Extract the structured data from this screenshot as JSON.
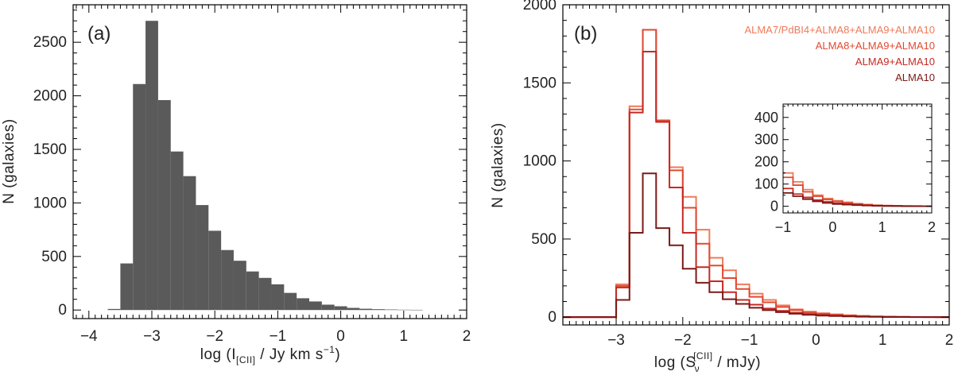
{
  "chart_data": [
    {
      "type": "bar",
      "panel_label": "(a)",
      "xlabel": "log (I",
      "xlabel_sub": "[CII]",
      "xlabel_rest": " / Jy km s",
      "xlabel_sup": "−1",
      "xlabel_close": ")",
      "ylabel": "N (galaxies)",
      "xlim": [
        -4.25,
        2.0
      ],
      "ylim": [
        -80,
        2850
      ],
      "xticks": [
        -4,
        -3,
        -2,
        -1,
        0,
        1,
        2
      ],
      "xtick_labels": [
        "−4",
        "−3",
        "−2",
        "−1",
        "0",
        "1",
        "2"
      ],
      "yticks": [
        0,
        500,
        1000,
        1500,
        2000,
        2500
      ],
      "ytick_labels": [
        "0",
        "500",
        "1000",
        "1500",
        "2000",
        "2500"
      ],
      "bin_width": 0.2,
      "bar_color": "#5a5a5a",
      "bins": [
        {
          "x0": -3.7,
          "value": 10
        },
        {
          "x0": -3.5,
          "value": 435
        },
        {
          "x0": -3.3,
          "value": 2110
        },
        {
          "x0": -3.1,
          "value": 2700
        },
        {
          "x0": -2.9,
          "value": 1960
        },
        {
          "x0": -2.7,
          "value": 1480
        },
        {
          "x0": -2.5,
          "value": 1250
        },
        {
          "x0": -2.3,
          "value": 980
        },
        {
          "x0": -2.1,
          "value": 740
        },
        {
          "x0": -1.9,
          "value": 560
        },
        {
          "x0": -1.7,
          "value": 460
        },
        {
          "x0": -1.5,
          "value": 360
        },
        {
          "x0": -1.3,
          "value": 300
        },
        {
          "x0": -1.1,
          "value": 240
        },
        {
          "x0": -0.9,
          "value": 160
        },
        {
          "x0": -0.7,
          "value": 110
        },
        {
          "x0": -0.5,
          "value": 80
        },
        {
          "x0": -0.3,
          "value": 50
        },
        {
          "x0": -0.1,
          "value": 35
        },
        {
          "x0": 0.1,
          "value": 20
        },
        {
          "x0": 0.3,
          "value": 12
        },
        {
          "x0": 0.5,
          "value": 8
        },
        {
          "x0": 0.7,
          "value": 5
        },
        {
          "x0": 0.9,
          "value": 3
        },
        {
          "x0": 1.1,
          "value": 2
        }
      ]
    },
    {
      "type": "line",
      "panel_label": "(b)",
      "xlabel": "log (S",
      "xlabel_sub": "ν",
      "xlabel_sup": "[CII]",
      "xlabel_rest": " / mJy)",
      "ylabel": "N (galaxies)",
      "xlim": [
        -3.8,
        2.0
      ],
      "ylim": [
        -50,
        2000
      ],
      "xticks": [
        -3,
        -2,
        -1,
        0,
        1,
        2
      ],
      "xtick_labels": [
        "−3",
        "−2",
        "−1",
        "0",
        "1",
        "2"
      ],
      "yticks": [
        0,
        500,
        1000,
        1500,
        2000
      ],
      "ytick_labels": [
        "0",
        "500",
        "1000",
        "1500",
        "2000"
      ],
      "step_edges": [
        -3.8,
        -3.6,
        -3.4,
        -3.2,
        -3.0,
        -2.8,
        -2.6,
        -2.4,
        -2.2,
        -2.0,
        -1.8,
        -1.6,
        -1.4,
        -1.2,
        -1.0,
        -0.8,
        -0.6,
        -0.4,
        -0.2,
        0.0,
        0.2,
        0.4,
        0.6,
        0.8,
        1.0,
        1.2,
        1.4,
        1.6,
        1.8,
        2.0
      ],
      "series": [
        {
          "name": "ALMA7/PdBI4+ALMA8+ALMA9+ALMA10",
          "color": "#ef7a5a",
          "values": [
            0,
            0,
            0,
            0,
            210,
            1350,
            1840,
            1260,
            960,
            770,
            560,
            380,
            300,
            210,
            150,
            110,
            75,
            50,
            35,
            25,
            18,
            12,
            8,
            5,
            3,
            2,
            1,
            1,
            0
          ]
        },
        {
          "name": "ALMA8+ALMA9+ALMA10",
          "color": "#df4a32",
          "values": [
            0,
            0,
            0,
            0,
            200,
            1330,
            1840,
            1260,
            940,
            700,
            470,
            330,
            250,
            180,
            130,
            95,
            65,
            45,
            30,
            22,
            15,
            10,
            7,
            4,
            3,
            2,
            1,
            1,
            0
          ]
        },
        {
          "name": "ALMA9+ALMA10",
          "color": "#c42a24",
          "values": [
            0,
            0,
            0,
            0,
            190,
            1310,
            1700,
            1250,
            830,
            540,
            320,
            230,
            160,
            110,
            80,
            55,
            40,
            28,
            20,
            14,
            10,
            7,
            5,
            3,
            2,
            1,
            1,
            0,
            0
          ]
        },
        {
          "name": "ALMA10",
          "color": "#7a1a18",
          "values": [
            0,
            0,
            0,
            0,
            110,
            540,
            920,
            570,
            460,
            310,
            220,
            160,
            115,
            85,
            60,
            45,
            32,
            22,
            15,
            10,
            7,
            5,
            3,
            2,
            1,
            1,
            0,
            0,
            0
          ]
        }
      ],
      "inset": {
        "xlim": [
          -1.0,
          2.0
        ],
        "ylim": [
          -30,
          460
        ],
        "xticks": [
          -1,
          0,
          1,
          2
        ],
        "xtick_labels": [
          "−1",
          "0",
          "1",
          "2"
        ],
        "yticks": [
          0,
          100,
          200,
          300,
          400
        ],
        "ytick_labels": [
          "0",
          "100",
          "200",
          "300",
          "400"
        ]
      }
    }
  ]
}
